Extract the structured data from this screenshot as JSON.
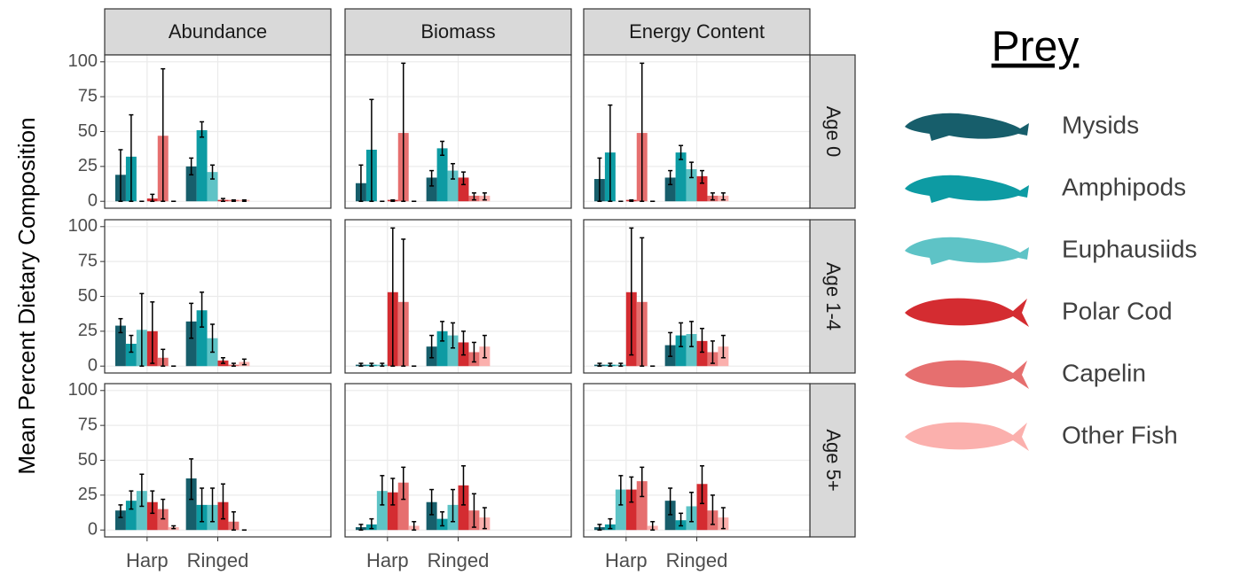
{
  "chart_data": {
    "type": "bar",
    "y_label": "Mean Percent Dietary Composition",
    "columns": [
      "Abundance",
      "Biomass",
      "Energy Content"
    ],
    "rows": [
      "Age 0",
      "Age 1-4",
      "Age 5+"
    ],
    "categories": [
      "Harp",
      "Ringed"
    ],
    "ylim": [
      0,
      100
    ],
    "yticks": [
      0,
      25,
      50,
      75,
      100
    ],
    "grid": true,
    "legend_title": "Prey",
    "series": [
      {
        "name": "Mysids",
        "color": "#175e6b",
        "values": [
          [
            [
              19,
              25
            ],
            [
              13,
              17
            ],
            [
              16,
              17
            ]
          ],
          [
            [
              29,
              32
            ],
            [
              1,
              14
            ],
            [
              1,
              15
            ]
          ],
          [
            [
              14,
              37
            ],
            [
              2,
              20
            ],
            [
              2,
              21
            ]
          ]
        ],
        "lower": [
          [
            [
              0,
              19
            ],
            [
              0,
              11
            ],
            [
              0,
              12
            ]
          ],
          [
            [
              24,
              20
            ],
            [
              0,
              6
            ],
            [
              0,
              7
            ]
          ],
          [
            [
              9,
              22
            ],
            [
              0,
              11
            ],
            [
              0,
              11
            ]
          ]
        ],
        "upper": [
          [
            [
              37,
              31
            ],
            [
              26,
              22
            ],
            [
              31,
              22
            ]
          ],
          [
            [
              34,
              45
            ],
            [
              2,
              22
            ],
            [
              2,
              24
            ]
          ],
          [
            [
              18,
              51
            ],
            [
              4,
              29
            ],
            [
              4,
              30
            ]
          ]
        ]
      },
      {
        "name": "Amphipods",
        "color": "#0d9ba3",
        "values": [
          [
            [
              32,
              51
            ],
            [
              37,
              38
            ],
            [
              35,
              35
            ]
          ],
          [
            [
              16,
              40
            ],
            [
              1,
              25
            ],
            [
              1,
              22
            ]
          ],
          [
            [
              21,
              18
            ],
            [
              4,
              8
            ],
            [
              4,
              7
            ]
          ]
        ],
        "lower": [
          [
            [
              0,
              46
            ],
            [
              0,
              33
            ],
            [
              0,
              30
            ]
          ],
          [
            [
              10,
              28
            ],
            [
              0,
              18
            ],
            [
              0,
              14
            ]
          ],
          [
            [
              15,
              6
            ],
            [
              1,
              3
            ],
            [
              1,
              3
            ]
          ]
        ],
        "upper": [
          [
            [
              62,
              57
            ],
            [
              73,
              43
            ],
            [
              69,
              40
            ]
          ],
          [
            [
              22,
              53
            ],
            [
              2,
              32
            ],
            [
              2,
              31
            ]
          ],
          [
            [
              28,
              30
            ],
            [
              8,
              13
            ],
            [
              8,
              12
            ]
          ]
        ]
      },
      {
        "name": "Euphausiids",
        "color": "#5ec3c6",
        "values": [
          [
            [
              0,
              21
            ],
            [
              0,
              22
            ],
            [
              0,
              23
            ]
          ],
          [
            [
              26,
              20
            ],
            [
              1,
              22
            ],
            [
              1,
              23
            ]
          ],
          [
            [
              28,
              18
            ],
            [
              28,
              18
            ],
            [
              29,
              17
            ]
          ]
        ],
        "lower": [
          [
            [
              0,
              16
            ],
            [
              0,
              16
            ],
            [
              0,
              17
            ]
          ],
          [
            [
              0,
              10
            ],
            [
              0,
              13
            ],
            [
              0,
              14
            ]
          ],
          [
            [
              17,
              6
            ],
            [
              18,
              6
            ],
            [
              18,
              6
            ]
          ]
        ],
        "upper": [
          [
            [
              0,
              26
            ],
            [
              0,
              27
            ],
            [
              0,
              28
            ]
          ],
          [
            [
              52,
              30
            ],
            [
              2,
              31
            ],
            [
              2,
              32
            ]
          ],
          [
            [
              40,
              30
            ],
            [
              39,
              29
            ],
            [
              39,
              27
            ]
          ]
        ]
      },
      {
        "name": "Polar Cod",
        "color": "#d42c31",
        "values": [
          [
            [
              2,
              1
            ],
            [
              1,
              17
            ],
            [
              1,
              18
            ]
          ],
          [
            [
              25,
              4
            ],
            [
              53,
              17
            ],
            [
              53,
              18
            ]
          ],
          [
            [
              20,
              20
            ],
            [
              27,
              32
            ],
            [
              29,
              33
            ]
          ]
        ],
        "lower": [
          [
            [
              0,
              0
            ],
            [
              0,
              12
            ],
            [
              0,
              13
            ]
          ],
          [
            [
              2,
              2
            ],
            [
              0,
              8
            ],
            [
              8,
              10
            ]
          ],
          [
            [
              12,
              8
            ],
            [
              18,
              18
            ],
            [
              20,
              19
            ]
          ]
        ],
        "upper": [
          [
            [
              5,
              2
            ],
            [
              1,
              21
            ],
            [
              1,
              22
            ]
          ],
          [
            [
              46,
              6
            ],
            [
              99,
              25
            ],
            [
              99,
              27
            ]
          ],
          [
            [
              28,
              33
            ],
            [
              37,
              46
            ],
            [
              38,
              46
            ]
          ]
        ]
      },
      {
        "name": "Capelin",
        "color": "#e66f6f",
        "values": [
          [
            [
              47,
              1
            ],
            [
              49,
              4
            ],
            [
              49,
              4
            ]
          ],
          [
            [
              6,
              1
            ],
            [
              46,
              10
            ],
            [
              46,
              10
            ]
          ],
          [
            [
              15,
              6
            ],
            [
              34,
              14
            ],
            [
              35,
              14
            ]
          ]
        ],
        "lower": [
          [
            [
              0,
              0
            ],
            [
              0,
              1
            ],
            [
              0,
              1
            ]
          ],
          [
            [
              0,
              0
            ],
            [
              0,
              3
            ],
            [
              0,
              2
            ]
          ],
          [
            [
              8,
              0
            ],
            [
              22,
              2
            ],
            [
              24,
              4
            ]
          ]
        ],
        "upper": [
          [
            [
              95,
              1
            ],
            [
              99,
              6
            ],
            [
              99,
              6
            ]
          ],
          [
            [
              12,
              2
            ],
            [
              91,
              17
            ],
            [
              92,
              18
            ]
          ],
          [
            [
              22,
              13
            ],
            [
              45,
              26
            ],
            [
              45,
              25
            ]
          ]
        ]
      },
      {
        "name": "Other Fish",
        "color": "#fbb0ad",
        "values": [
          [
            [
              0,
              1
            ],
            [
              0,
              4
            ],
            [
              0,
              4
            ]
          ],
          [
            [
              0,
              3
            ],
            [
              0,
              14
            ],
            [
              0,
              14
            ]
          ],
          [
            [
              2,
              0
            ],
            [
              3,
              9
            ],
            [
              3,
              9
            ]
          ]
        ],
        "lower": [
          [
            [
              0,
              0
            ],
            [
              0,
              1
            ],
            [
              0,
              1
            ]
          ],
          [
            [
              0,
              1
            ],
            [
              0,
              6
            ],
            [
              0,
              6
            ]
          ],
          [
            [
              1,
              0
            ],
            [
              0,
              1
            ],
            [
              0,
              1
            ]
          ]
        ],
        "upper": [
          [
            [
              0,
              1
            ],
            [
              0,
              6
            ],
            [
              0,
              6
            ]
          ],
          [
            [
              0,
              5
            ],
            [
              0,
              22
            ],
            [
              0,
              22
            ]
          ],
          [
            [
              3,
              0
            ],
            [
              6,
              16
            ],
            [
              6,
              16
            ]
          ]
        ]
      }
    ]
  }
}
